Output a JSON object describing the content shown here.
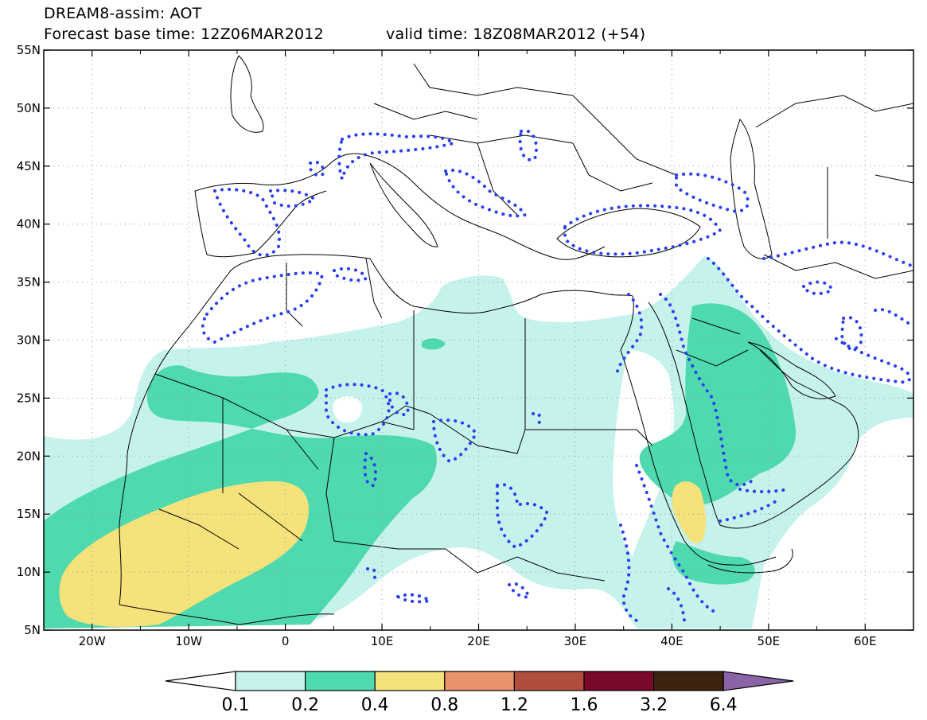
{
  "header": {
    "title": "DREAM8-assim: AOT",
    "base_time": "Forecast base time: 12Z06MAR2012",
    "valid_time": "valid time: 18Z08MAR2012 (+54)"
  },
  "map": {
    "projection": "lat-lon",
    "lon_range": [
      -25,
      65
    ],
    "lat_range": [
      5,
      55
    ],
    "lat_ticks": [
      {
        "value": 55,
        "label": "55N"
      },
      {
        "value": 50,
        "label": "50N"
      },
      {
        "value": 45,
        "label": "45N"
      },
      {
        "value": 40,
        "label": "40N"
      },
      {
        "value": 35,
        "label": "35N"
      },
      {
        "value": 30,
        "label": "30N"
      },
      {
        "value": 25,
        "label": "25N"
      },
      {
        "value": 20,
        "label": "20N"
      },
      {
        "value": 15,
        "label": "15N"
      },
      {
        "value": 10,
        "label": "10N"
      },
      {
        "value": 5,
        "label": "5N"
      }
    ],
    "lon_ticks": [
      {
        "value": -20,
        "label": "20W"
      },
      {
        "value": -10,
        "label": "10W"
      },
      {
        "value": 0,
        "label": "0"
      },
      {
        "value": 10,
        "label": "10E"
      },
      {
        "value": 20,
        "label": "20E"
      },
      {
        "value": 30,
        "label": "30E"
      },
      {
        "value": 40,
        "label": "40E"
      },
      {
        "value": 50,
        "label": "50E"
      },
      {
        "value": 60,
        "label": "60E"
      }
    ],
    "field_colors": {
      "level_0_1": "#c6f2ec",
      "level_0_2": "#4fd9ae",
      "level_0_4": "#f5e27a"
    },
    "coastline_color": "#000000",
    "contour_color": "#2a3ff0"
  },
  "colorbar": {
    "labels": [
      "0.1",
      "0.2",
      "0.4",
      "0.8",
      "1.2",
      "1.6",
      "3.2",
      "6.4"
    ],
    "colors": [
      "#ffffff",
      "#c6f2ec",
      "#4fd9ae",
      "#f5e27a",
      "#e8936c",
      "#b04e3e",
      "#7a0828",
      "#3c2410",
      "#8a64a6"
    ]
  }
}
